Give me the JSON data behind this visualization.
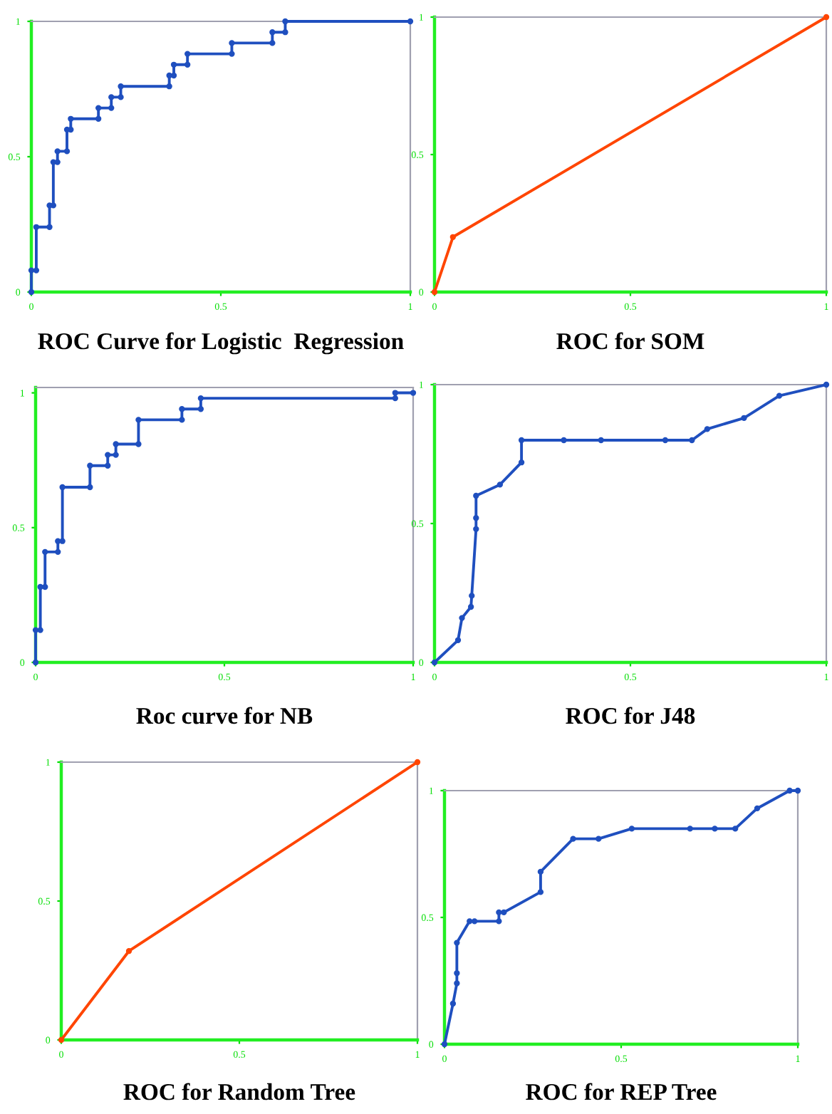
{
  "chart_data": [
    {
      "type": "line",
      "title": "ROC Curve for Logistic  Regression",
      "x": [
        0,
        0,
        0.013,
        0.013,
        0.048,
        0.048,
        0.058,
        0.058,
        0.069,
        0.069,
        0.094,
        0.094,
        0.104,
        0.104,
        0.177,
        0.177,
        0.211,
        0.211,
        0.236,
        0.236,
        0.364,
        0.364,
        0.376,
        0.376,
        0.412,
        0.412,
        0.529,
        0.529,
        0.636,
        0.636,
        0.67,
        0.67,
        1
      ],
      "series": [
        {
          "color": "#1f4fbf",
          "values": [
            0,
            0.08,
            0.08,
            0.24,
            0.24,
            0.32,
            0.32,
            0.48,
            0.48,
            0.52,
            0.52,
            0.6,
            0.6,
            0.64,
            0.64,
            0.68,
            0.68,
            0.72,
            0.72,
            0.76,
            0.76,
            0.8,
            0.8,
            0.84,
            0.84,
            0.88,
            0.88,
            0.92,
            0.92,
            0.96,
            0.96,
            1,
            1
          ]
        }
      ],
      "xlim": [
        0,
        1
      ],
      "ylim": [
        0,
        1
      ],
      "xticks": [
        0,
        0.5,
        1
      ],
      "yticks": [
        0,
        0.5,
        1
      ],
      "marker": "circle",
      "line_style": "solid",
      "grid": false
    },
    {
      "type": "line",
      "title": "ROC for SOM",
      "x": [
        0,
        0.047,
        1
      ],
      "series": [
        {
          "color": "#ff4500",
          "values": [
            0,
            0.2,
            1
          ]
        }
      ],
      "xlim": [
        0,
        1
      ],
      "ylim": [
        0,
        1
      ],
      "xticks": [
        0,
        0.5,
        1
      ],
      "yticks": [
        0,
        0.5,
        1
      ],
      "marker": "circle",
      "line_style": "solid",
      "grid": false
    },
    {
      "type": "line",
      "title": "Roc curve for NB",
      "x": [
        0,
        0,
        0.0125,
        0.0125,
        0.025,
        0.025,
        0.059,
        0.059,
        0.071,
        0.071,
        0.144,
        0.144,
        0.191,
        0.191,
        0.2125,
        0.2125,
        0.2725,
        0.2725,
        0.3875,
        0.3875,
        0.4375,
        0.4375,
        0.9525,
        0.9525,
        1
      ],
      "series": [
        {
          "color": "#1f4fbf",
          "values": [
            0,
            0.12,
            0.12,
            0.28,
            0.28,
            0.41,
            0.41,
            0.45,
            0.45,
            0.65,
            0.65,
            0.73,
            0.73,
            0.77,
            0.77,
            0.81,
            0.81,
            0.9,
            0.9,
            0.94,
            0.94,
            0.98,
            0.98,
            1,
            1
          ]
        }
      ],
      "xlim": [
        0,
        1
      ],
      "ylim": [
        0,
        1.02
      ],
      "xticks": [
        0,
        0.5,
        1
      ],
      "yticks": [
        0,
        0.5,
        1
      ],
      "marker": "circle",
      "line_style": "solid",
      "grid": false
    },
    {
      "type": "line",
      "title": "ROC for J48",
      "x": [
        0,
        0.06,
        0.07,
        0.093,
        0.095,
        0.106,
        0.106,
        0.106,
        0.167,
        0.222,
        0.222,
        0.33,
        0.425,
        0.589,
        0.657,
        0.696,
        0.79,
        0.88,
        1
      ],
      "series": [
        {
          "color": "#1f4fbf",
          "values": [
            0,
            0.08,
            0.16,
            0.2,
            0.24,
            0.48,
            0.52,
            0.6,
            0.64,
            0.72,
            0.8,
            0.8,
            0.8,
            0.8,
            0.8,
            0.84,
            0.88,
            0.96,
            1
          ]
        }
      ],
      "xlim": [
        0,
        1
      ],
      "ylim": [
        0,
        1
      ],
      "xticks": [
        0,
        0.5,
        1
      ],
      "yticks": [
        0,
        0.5,
        1
      ],
      "marker": "circle",
      "line_style": "solid",
      "grid": false
    },
    {
      "type": "line",
      "title": "ROC for Random Tree",
      "x": [
        0,
        0.19,
        1
      ],
      "series": [
        {
          "color": "#ff4500",
          "values": [
            0,
            0.32,
            1
          ]
        }
      ],
      "xlim": [
        0,
        1
      ],
      "ylim": [
        0,
        1
      ],
      "xticks": [
        0,
        0.5,
        1
      ],
      "yticks": [
        0,
        0.5,
        1
      ],
      "marker": "circle",
      "line_style": "solid",
      "grid": false
    },
    {
      "type": "line",
      "title": "ROC for REP Tree",
      "x": [
        0,
        0.024,
        0.035,
        0.035,
        0.035,
        0.071,
        0.085,
        0.154,
        0.154,
        0.168,
        0.272,
        0.272,
        0.364,
        0.436,
        0.53,
        0.695,
        0.765,
        0.823,
        0.885,
        0.977,
        1
      ],
      "series": [
        {
          "color": "#1f4fbf",
          "values": [
            0,
            0.16,
            0.24,
            0.28,
            0.4,
            0.485,
            0.485,
            0.485,
            0.52,
            0.52,
            0.6,
            0.68,
            0.81,
            0.81,
            0.85,
            0.85,
            0.85,
            0.85,
            0.93,
            1,
            1
          ]
        }
      ],
      "xlim": [
        0,
        1
      ],
      "ylim": [
        0,
        1
      ],
      "xticks": [
        0,
        0.5,
        1
      ],
      "yticks": [
        0,
        0.5,
        1
      ],
      "marker": "circle",
      "line_style": "solid",
      "grid": false
    }
  ]
}
